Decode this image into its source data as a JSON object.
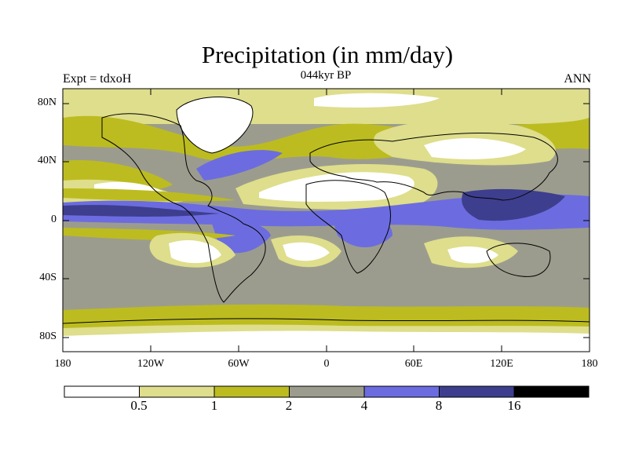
{
  "title": "Precipitation (in mm/day)",
  "left_label": "Expt = tdxoH",
  "center_label": "044kyr BP",
  "right_label": "ANN",
  "lat_ticks": [
    "80N",
    "40N",
    "0",
    "40S",
    "80S"
  ],
  "lon_ticks": [
    "180",
    "120W",
    "60W",
    "0",
    "60E",
    "120E",
    "180"
  ],
  "colorbar": {
    "labels": [
      "0.5",
      "1",
      "2",
      "4",
      "8",
      "16"
    ],
    "colors": [
      "#ffffff",
      "#dede8c",
      "#bcbc20",
      "#9c9c8e",
      "#6c6ce0",
      "#3e3e8e",
      "#000000"
    ]
  }
}
